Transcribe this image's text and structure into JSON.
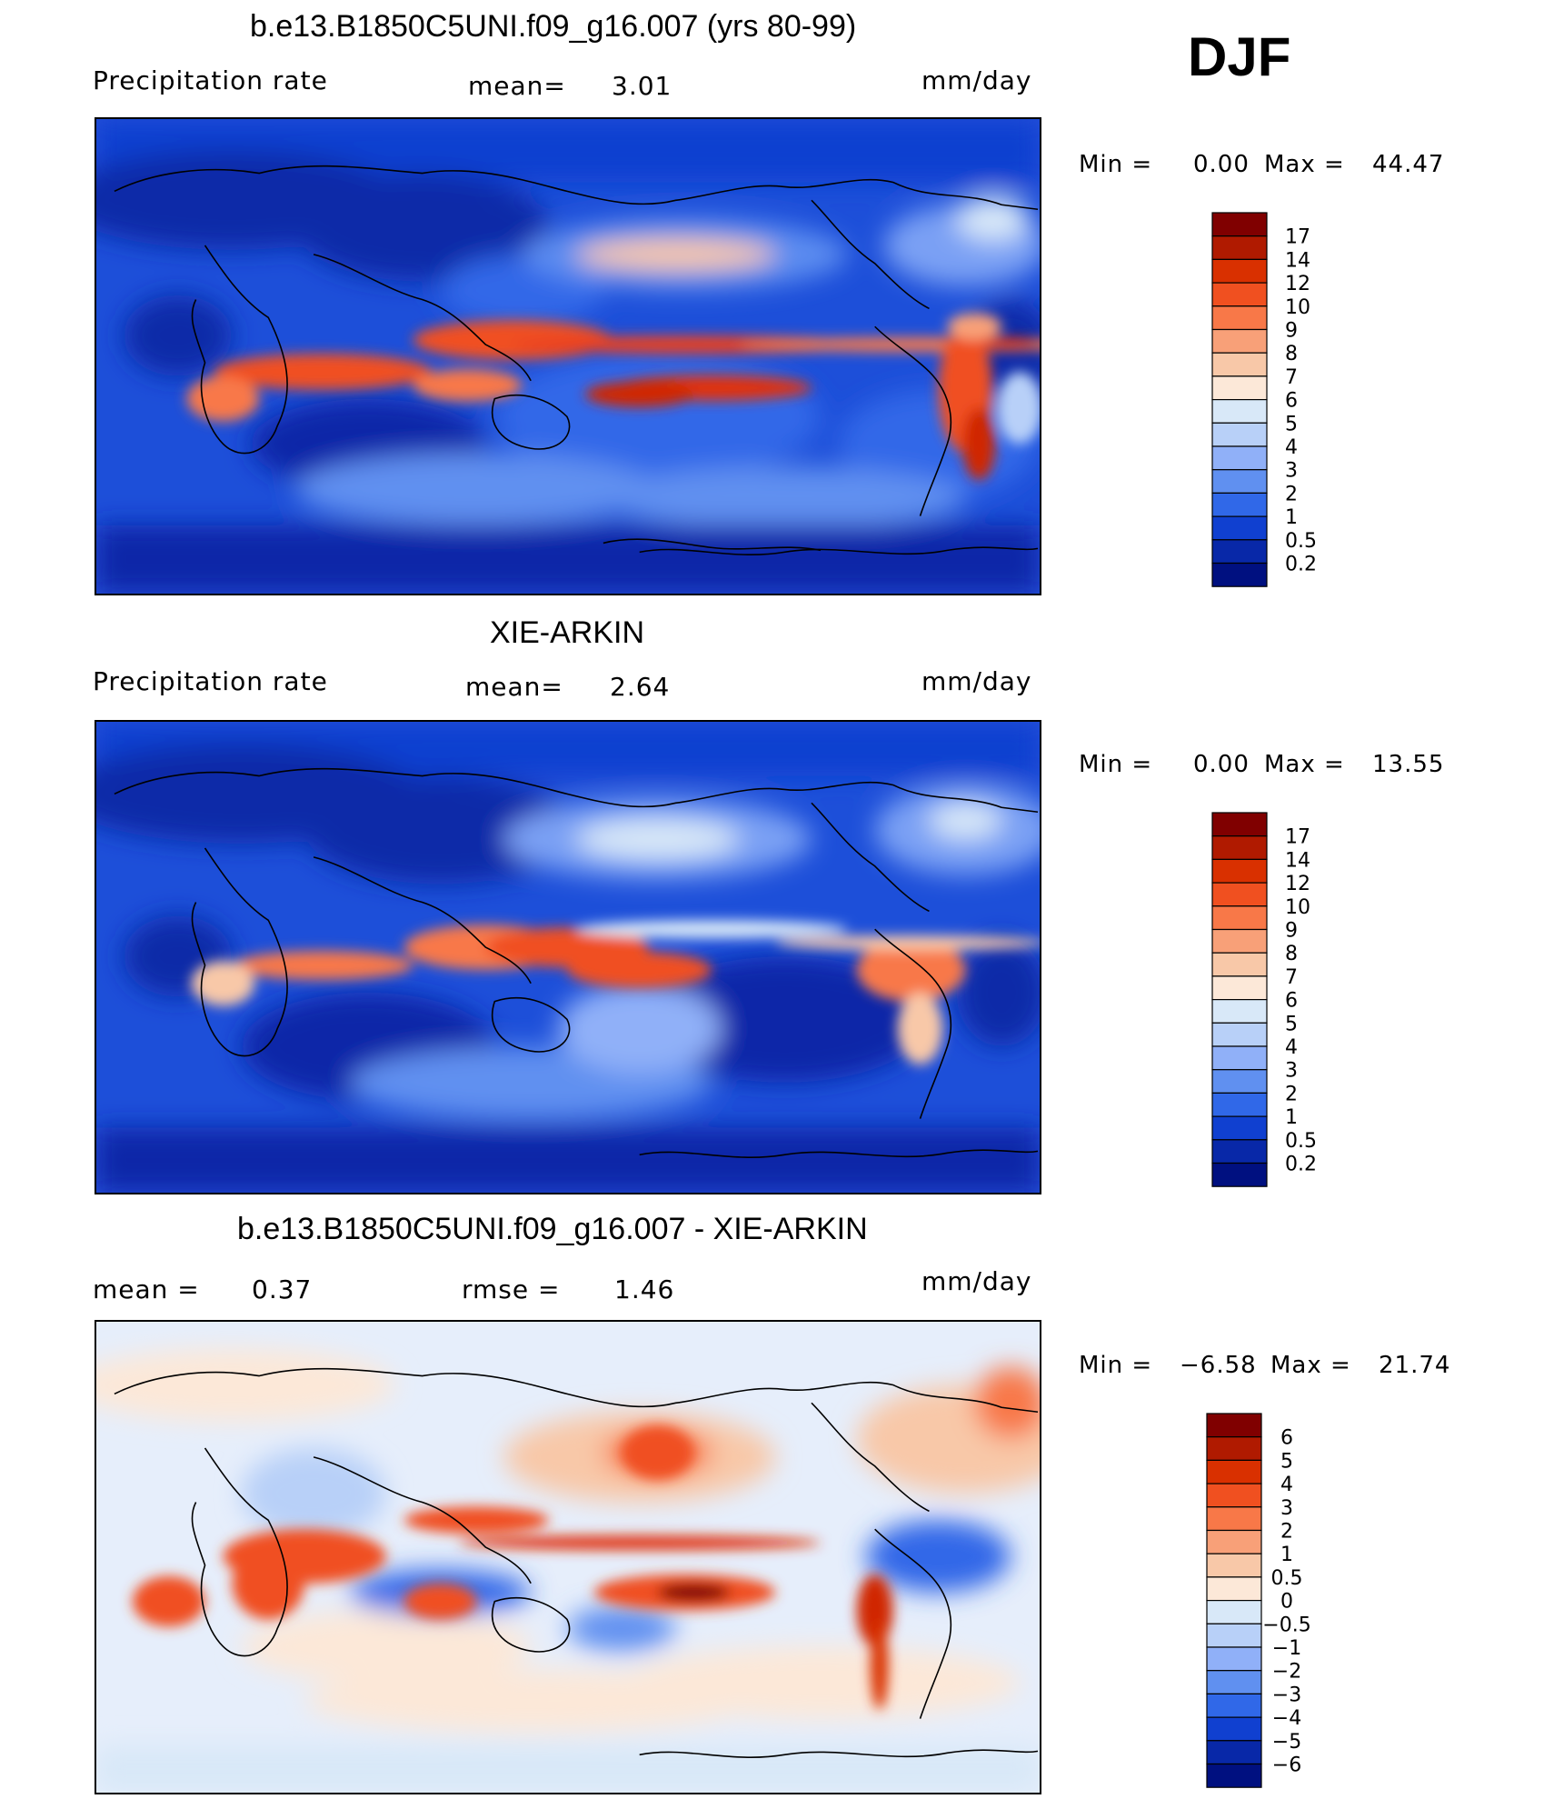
{
  "season": "DJF",
  "units": "mm/day",
  "panels": [
    {
      "id": "model",
      "title": "b.e13.B1850C5UNI.f09_g16.007 (yrs 80-99)",
      "left_label": "Precipitation rate",
      "stat1_label": "mean=",
      "stat1_value": "3.01",
      "units": "mm/day",
      "min_label": "Min =",
      "min_value": "0.00",
      "max_label": "Max =",
      "max_value": "44.47"
    },
    {
      "id": "obs",
      "title": "XIE-ARKIN",
      "left_label": "Precipitation rate",
      "stat1_label": "mean=",
      "stat1_value": "2.64",
      "units": "mm/day",
      "min_label": "Min =",
      "min_value": "0.00",
      "max_label": "Max =",
      "max_value": "13.55"
    },
    {
      "id": "diff",
      "title": "b.e13.B1850C5UNI.f09_g16.007 - XIE-ARKIN",
      "left_label": "mean =",
      "left_value": "0.37",
      "stat1_label": "rmse =",
      "stat1_value": "1.46",
      "units": "mm/day",
      "min_label": "Min =",
      "min_value": "−6.58",
      "max_label": "Max =",
      "max_value": "21.74"
    }
  ],
  "chart_data": [
    {
      "type": "heatmap",
      "title": "b.e13.B1850C5UNI.f09_g16.007 (yrs 80-99)",
      "variable": "Precipitation rate",
      "units": "mm/day",
      "mean": 3.01,
      "min": 0.0,
      "max": 44.47,
      "colorbar": {
        "levels": [
          "17",
          "14",
          "12",
          "10",
          "9",
          "8",
          "7",
          "6",
          "5",
          "4",
          "3",
          "2",
          "1",
          "0.5",
          "0.2"
        ],
        "colors": [
          "#800000",
          "#b01a00",
          "#d93000",
          "#f05020",
          "#f87848",
          "#f8a078",
          "#f8c8a8",
          "#fce8d8",
          "#d8e8f8",
          "#b8d0f8",
          "#90b0f8",
          "#6090f0",
          "#3068e8",
          "#1040d0",
          "#0828a8",
          "#001080"
        ]
      }
    },
    {
      "type": "heatmap",
      "title": "XIE-ARKIN",
      "variable": "Precipitation rate",
      "units": "mm/day",
      "mean": 2.64,
      "min": 0.0,
      "max": 13.55,
      "colorbar": {
        "levels": [
          "17",
          "14",
          "12",
          "10",
          "9",
          "8",
          "7",
          "6",
          "5",
          "4",
          "3",
          "2",
          "1",
          "0.5",
          "0.2"
        ],
        "colors": [
          "#800000",
          "#b01a00",
          "#d93000",
          "#f05020",
          "#f87848",
          "#f8a078",
          "#f8c8a8",
          "#fce8d8",
          "#d8e8f8",
          "#b8d0f8",
          "#90b0f8",
          "#6090f0",
          "#3068e8",
          "#1040d0",
          "#0828a8",
          "#001080"
        ]
      }
    },
    {
      "type": "heatmap",
      "title": "b.e13.B1850C5UNI.f09_g16.007 - XIE-ARKIN",
      "units": "mm/day",
      "mean": 0.37,
      "rmse": 1.46,
      "min": -6.58,
      "max": 21.74,
      "colorbar": {
        "levels": [
          "6",
          "5",
          "4",
          "3",
          "2",
          "1",
          "0.5",
          "0",
          "−0.5",
          "−1",
          "−2",
          "−3",
          "−4",
          "−5",
          "−6"
        ],
        "colors": [
          "#800000",
          "#b01a00",
          "#d93000",
          "#f05020",
          "#f87848",
          "#f8a078",
          "#f8c8a8",
          "#fce8d8",
          "#d8e8f8",
          "#b8d0f8",
          "#90b0f8",
          "#6090f0",
          "#3068e8",
          "#1040d0",
          "#0828a8",
          "#001080"
        ]
      }
    }
  ]
}
